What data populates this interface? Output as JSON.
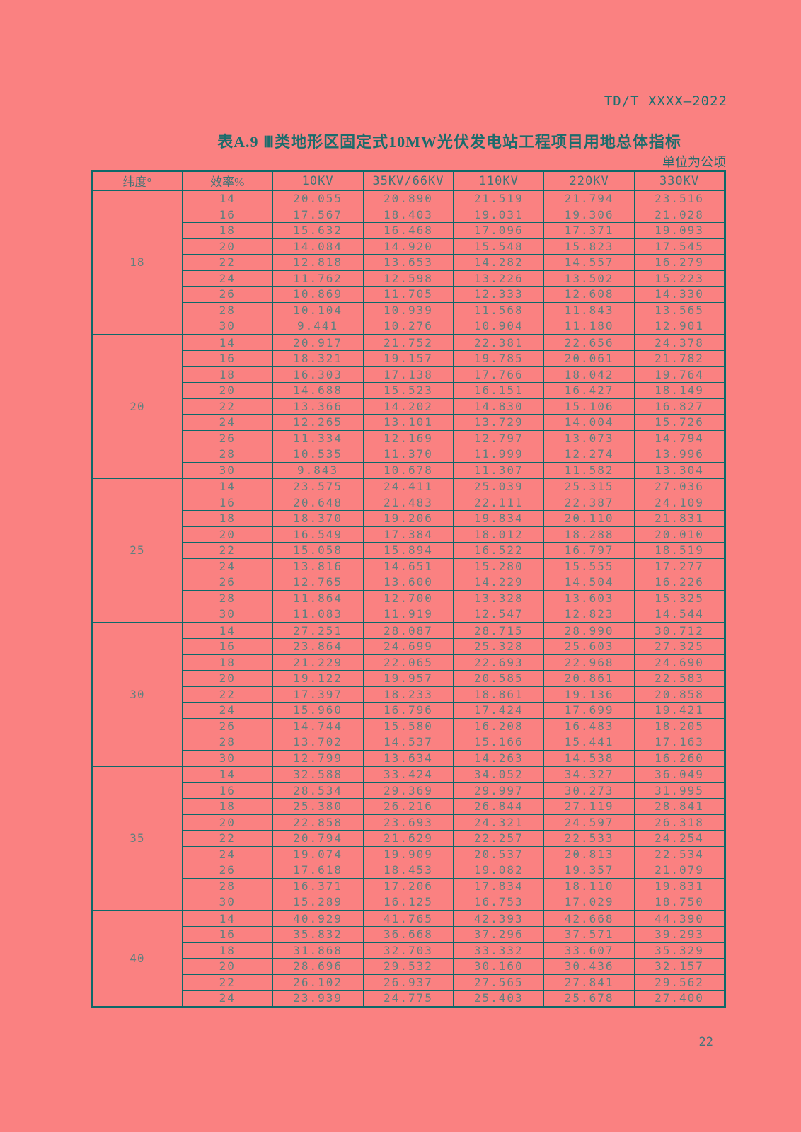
{
  "page": {
    "doc_number": "TD/T XXXX—2022",
    "page_number": "22"
  },
  "table": {
    "title": "表A.9 Ⅲ类地形区固定式10MW光伏发电站工程项目用地总体指标",
    "unit_note": "单位为公顷",
    "columns": [
      "纬度°",
      "效率%",
      "10KV",
      "35KV/66KV",
      "110KV",
      "220KV",
      "330KV"
    ]
  },
  "colors": {
    "background": "#fa8181",
    "table_border": "#0d6969",
    "heading_text": "#1c6c6c",
    "data_text": "#61807f"
  },
  "chart_data": {
    "type": "table",
    "title": "表A.9 Ⅲ类地形区固定式10MW光伏发电站工程项目用地总体指标",
    "unit": "单位为公顷",
    "columns": [
      "纬度°",
      "效率%",
      "10KV",
      "35KV/66KV",
      "110KV",
      "220KV",
      "330KV"
    ],
    "groups": [
      {
        "latitude": "18",
        "rows": [
          {
            "efficiency": "14",
            "values": [
              "20.055",
              "20.890",
              "21.519",
              "21.794",
              "23.516"
            ]
          },
          {
            "efficiency": "16",
            "values": [
              "17.567",
              "18.403",
              "19.031",
              "19.306",
              "21.028"
            ]
          },
          {
            "efficiency": "18",
            "values": [
              "15.632",
              "16.468",
              "17.096",
              "17.371",
              "19.093"
            ]
          },
          {
            "efficiency": "20",
            "values": [
              "14.084",
              "14.920",
              "15.548",
              "15.823",
              "17.545"
            ]
          },
          {
            "efficiency": "22",
            "values": [
              "12.818",
              "13.653",
              "14.282",
              "14.557",
              "16.279"
            ]
          },
          {
            "efficiency": "24",
            "values": [
              "11.762",
              "12.598",
              "13.226",
              "13.502",
              "15.223"
            ]
          },
          {
            "efficiency": "26",
            "values": [
              "10.869",
              "11.705",
              "12.333",
              "12.608",
              "14.330"
            ]
          },
          {
            "efficiency": "28",
            "values": [
              "10.104",
              "10.939",
              "11.568",
              "11.843",
              "13.565"
            ]
          },
          {
            "efficiency": "30",
            "values": [
              "9.441",
              "10.276",
              "10.904",
              "11.180",
              "12.901"
            ]
          }
        ]
      },
      {
        "latitude": "20",
        "rows": [
          {
            "efficiency": "14",
            "values": [
              "20.917",
              "21.752",
              "22.381",
              "22.656",
              "24.378"
            ]
          },
          {
            "efficiency": "16",
            "values": [
              "18.321",
              "19.157",
              "19.785",
              "20.061",
              "21.782"
            ]
          },
          {
            "efficiency": "18",
            "values": [
              "16.303",
              "17.138",
              "17.766",
              "18.042",
              "19.764"
            ]
          },
          {
            "efficiency": "20",
            "values": [
              "14.688",
              "15.523",
              "16.151",
              "16.427",
              "18.149"
            ]
          },
          {
            "efficiency": "22",
            "values": [
              "13.366",
              "14.202",
              "14.830",
              "15.106",
              "16.827"
            ]
          },
          {
            "efficiency": "24",
            "values": [
              "12.265",
              "13.101",
              "13.729",
              "14.004",
              "15.726"
            ]
          },
          {
            "efficiency": "26",
            "values": [
              "11.334",
              "12.169",
              "12.797",
              "13.073",
              "14.794"
            ]
          },
          {
            "efficiency": "28",
            "values": [
              "10.535",
              "11.370",
              "11.999",
              "12.274",
              "13.996"
            ]
          },
          {
            "efficiency": "30",
            "values": [
              "9.843",
              "10.678",
              "11.307",
              "11.582",
              "13.304"
            ]
          }
        ]
      },
      {
        "latitude": "25",
        "rows": [
          {
            "efficiency": "14",
            "values": [
              "23.575",
              "24.411",
              "25.039",
              "25.315",
              "27.036"
            ]
          },
          {
            "efficiency": "16",
            "values": [
              "20.648",
              "21.483",
              "22.111",
              "22.387",
              "24.109"
            ]
          },
          {
            "efficiency": "18",
            "values": [
              "18.370",
              "19.206",
              "19.834",
              "20.110",
              "21.831"
            ]
          },
          {
            "efficiency": "20",
            "values": [
              "16.549",
              "17.384",
              "18.012",
              "18.288",
              "20.010"
            ]
          },
          {
            "efficiency": "22",
            "values": [
              "15.058",
              "15.894",
              "16.522",
              "16.797",
              "18.519"
            ]
          },
          {
            "efficiency": "24",
            "values": [
              "13.816",
              "14.651",
              "15.280",
              "15.555",
              "17.277"
            ]
          },
          {
            "efficiency": "26",
            "values": [
              "12.765",
              "13.600",
              "14.229",
              "14.504",
              "16.226"
            ]
          },
          {
            "efficiency": "28",
            "values": [
              "11.864",
              "12.700",
              "13.328",
              "13.603",
              "15.325"
            ]
          },
          {
            "efficiency": "30",
            "values": [
              "11.083",
              "11.919",
              "12.547",
              "12.823",
              "14.544"
            ]
          }
        ]
      },
      {
        "latitude": "30",
        "rows": [
          {
            "efficiency": "14",
            "values": [
              "27.251",
              "28.087",
              "28.715",
              "28.990",
              "30.712"
            ]
          },
          {
            "efficiency": "16",
            "values": [
              "23.864",
              "24.699",
              "25.328",
              "25.603",
              "27.325"
            ]
          },
          {
            "efficiency": "18",
            "values": [
              "21.229",
              "22.065",
              "22.693",
              "22.968",
              "24.690"
            ]
          },
          {
            "efficiency": "20",
            "values": [
              "19.122",
              "19.957",
              "20.585",
              "20.861",
              "22.583"
            ]
          },
          {
            "efficiency": "22",
            "values": [
              "17.397",
              "18.233",
              "18.861",
              "19.136",
              "20.858"
            ]
          },
          {
            "efficiency": "24",
            "values": [
              "15.960",
              "16.796",
              "17.424",
              "17.699",
              "19.421"
            ]
          },
          {
            "efficiency": "26",
            "values": [
              "14.744",
              "15.580",
              "16.208",
              "16.483",
              "18.205"
            ]
          },
          {
            "efficiency": "28",
            "values": [
              "13.702",
              "14.537",
              "15.166",
              "15.441",
              "17.163"
            ]
          },
          {
            "efficiency": "30",
            "values": [
              "12.799",
              "13.634",
              "14.263",
              "14.538",
              "16.260"
            ]
          }
        ]
      },
      {
        "latitude": "35",
        "rows": [
          {
            "efficiency": "14",
            "values": [
              "32.588",
              "33.424",
              "34.052",
              "34.327",
              "36.049"
            ]
          },
          {
            "efficiency": "16",
            "values": [
              "28.534",
              "29.369",
              "29.997",
              "30.273",
              "31.995"
            ]
          },
          {
            "efficiency": "18",
            "values": [
              "25.380",
              "26.216",
              "26.844",
              "27.119",
              "28.841"
            ]
          },
          {
            "efficiency": "20",
            "values": [
              "22.858",
              "23.693",
              "24.321",
              "24.597",
              "26.318"
            ]
          },
          {
            "efficiency": "22",
            "values": [
              "20.794",
              "21.629",
              "22.257",
              "22.533",
              "24.254"
            ]
          },
          {
            "efficiency": "24",
            "values": [
              "19.074",
              "19.909",
              "20.537",
              "20.813",
              "22.534"
            ]
          },
          {
            "efficiency": "26",
            "values": [
              "17.618",
              "18.453",
              "19.082",
              "19.357",
              "21.079"
            ]
          },
          {
            "efficiency": "28",
            "values": [
              "16.371",
              "17.206",
              "17.834",
              "18.110",
              "19.831"
            ]
          },
          {
            "efficiency": "30",
            "values": [
              "15.289",
              "16.125",
              "16.753",
              "17.029",
              "18.750"
            ]
          }
        ]
      },
      {
        "latitude": "40",
        "rows": [
          {
            "efficiency": "14",
            "values": [
              "40.929",
              "41.765",
              "42.393",
              "42.668",
              "44.390"
            ]
          },
          {
            "efficiency": "16",
            "values": [
              "35.832",
              "36.668",
              "37.296",
              "37.571",
              "39.293"
            ]
          },
          {
            "efficiency": "18",
            "values": [
              "31.868",
              "32.703",
              "33.332",
              "33.607",
              "35.329"
            ]
          },
          {
            "efficiency": "20",
            "values": [
              "28.696",
              "29.532",
              "30.160",
              "30.436",
              "32.157"
            ]
          },
          {
            "efficiency": "22",
            "values": [
              "26.102",
              "26.937",
              "27.565",
              "27.841",
              "29.562"
            ]
          },
          {
            "efficiency": "24",
            "values": [
              "23.939",
              "24.775",
              "25.403",
              "25.678",
              "27.400"
            ]
          }
        ]
      }
    ]
  }
}
